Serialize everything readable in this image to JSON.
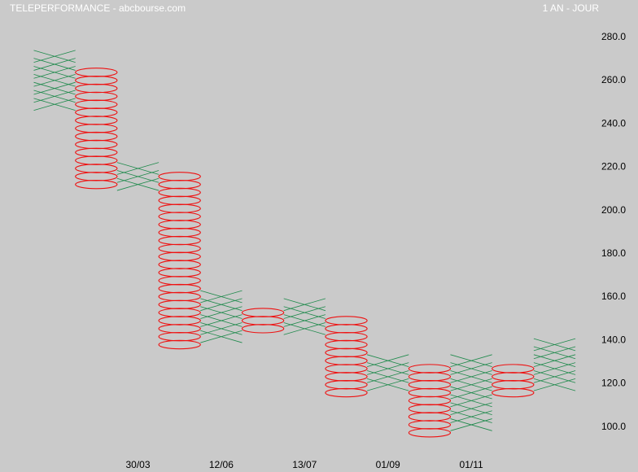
{
  "header": {
    "title": "TELEPERFORMANCE - abcbourse.com",
    "period": "1 AN - JOUR"
  },
  "colors": {
    "x": "#1f8a4c",
    "o": "#ee1111",
    "background": "#cacaca"
  },
  "chart_data": {
    "type": "point-and-figure",
    "title": "TELEPERFORMANCE - abcbourse.com",
    "xlabel": "",
    "ylabel": "",
    "ylim": [
      95,
      285
    ],
    "box_size": 3.7,
    "y_ticks": [
      "280.0",
      "260.0",
      "240.0",
      "220.0",
      "200.0",
      "180.0",
      "160.0",
      "140.0",
      "120.0",
      "100.0"
    ],
    "y_tick_values": [
      280,
      260,
      240,
      220,
      200,
      180,
      160,
      140,
      120,
      100
    ],
    "x_ticks": [
      {
        "label": "30/03",
        "column": 2.5
      },
      {
        "label": "12/06",
        "column": 4.5
      },
      {
        "label": "13/07",
        "column": 6.5
      },
      {
        "label": "01/09",
        "column": 8.5
      },
      {
        "label": "01/11",
        "column": 10.5
      }
    ],
    "columns": [
      {
        "type": "X",
        "low": 248.7,
        "high": 270.9
      },
      {
        "type": "O",
        "low": 211.7,
        "high": 263.5
      },
      {
        "type": "X",
        "low": 211.7,
        "high": 219.1
      },
      {
        "type": "O",
        "low": 137.7,
        "high": 215.4
      },
      {
        "type": "X",
        "low": 141.4,
        "high": 159.9
      },
      {
        "type": "O",
        "low": 145.1,
        "high": 152.5
      },
      {
        "type": "X",
        "low": 145.1,
        "high": 156.2
      },
      {
        "type": "O",
        "low": 115.5,
        "high": 148.8
      },
      {
        "type": "X",
        "low": 119.2,
        "high": 130.3
      },
      {
        "type": "O",
        "low": 97.0,
        "high": 126.6
      },
      {
        "type": "X",
        "low": 100.7,
        "high": 130.3
      },
      {
        "type": "O",
        "low": 115.5,
        "high": 126.6
      },
      {
        "type": "X",
        "low": 119.2,
        "high": 137.7
      }
    ]
  }
}
